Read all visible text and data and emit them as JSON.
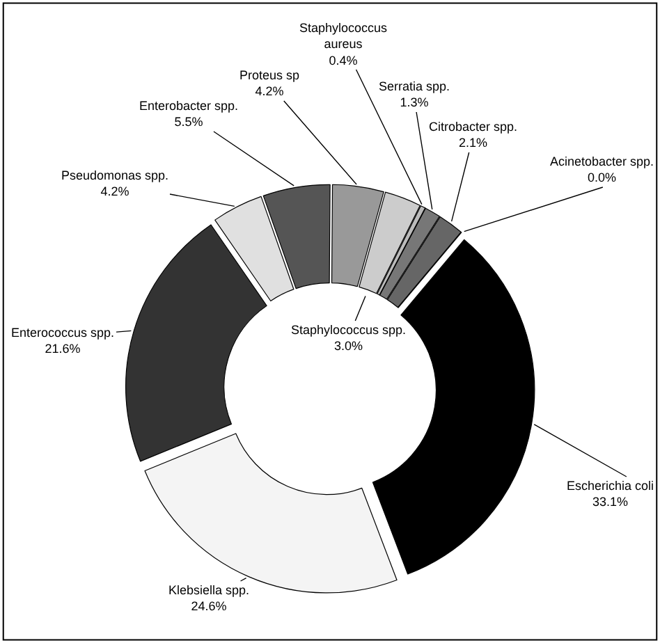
{
  "chart_data": {
    "type": "donut",
    "categories": [
      "Escherichia coli",
      "Klebsiella spp.",
      "Enterococcus spp.",
      "Pseudomonas spp.",
      "Enterobacter spp.",
      "Proteus sp",
      "Staphylococcus spp.",
      "Staphylococcus aureus",
      "Serratia spp.",
      "Citrobacter spp.",
      "Acinetobacter spp."
    ],
    "values": [
      33.1,
      24.6,
      21.6,
      4.2,
      5.5,
      4.2,
      3.0,
      0.4,
      1.3,
      2.1,
      0.0
    ],
    "value_labels": [
      "33.1%",
      "24.6%",
      "21.6%",
      "4.2%",
      "5.5%",
      "4.2%",
      "3.0%",
      "0.4%",
      "1.3%",
      "2.1%",
      "0.0%"
    ],
    "colors": [
      "#000000",
      "#f4f4f4",
      "#333333",
      "#e0e0e0",
      "#555555",
      "#999999",
      "#cccccc",
      "#bbbbbb",
      "#777777",
      "#666666",
      "#ffffff"
    ]
  }
}
